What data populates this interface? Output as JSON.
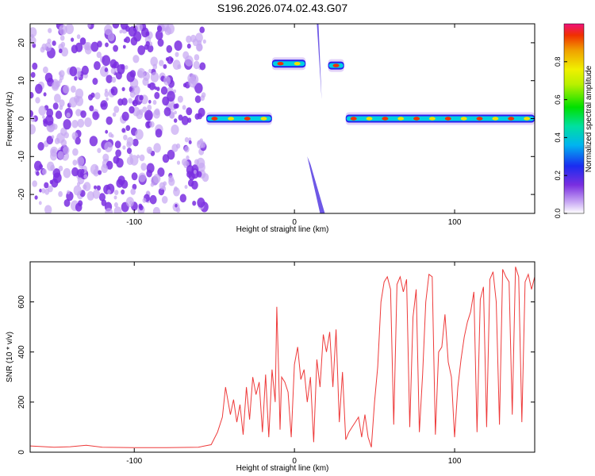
{
  "title": "S196.2026.074.02.43.G07",
  "colors": {
    "snr_line": "#ee3a3a",
    "blob": "#7a2ee0",
    "blob_light": "#c6a6f2"
  },
  "chart_data": [
    {
      "type": "heatmap",
      "title": "S196.2026.074.02.43.G07",
      "xlabel": "Height of straight line (km)",
      "ylabel": "Frequency (Hz)",
      "xlim": [
        -165,
        150
      ],
      "ylim": [
        -25,
        25
      ],
      "xticks": [
        -100,
        0,
        100
      ],
      "yticks": [
        -20,
        -10,
        0,
        10,
        20
      ],
      "xtick_labels": [
        "-100",
        "0",
        "100"
      ],
      "ytick_labels": [
        "-20",
        "-10",
        "0",
        "10",
        "20"
      ],
      "colorbar": {
        "label": "Normalized spectral amplitude",
        "range": [
          0,
          1
        ],
        "ticks": [
          0,
          0.2,
          0.4,
          0.6,
          0.8
        ],
        "tick_labels": [
          "0.0",
          "0.2",
          "0.4",
          "0.6",
          "0.8"
        ]
      },
      "segments": [
        {
          "x0": -165,
          "x1": -55,
          "freq": null,
          "kind": "noise"
        },
        {
          "x0": -55,
          "x1": -14,
          "freq": 0,
          "kind": "line"
        },
        {
          "x0": -14,
          "x1": 7,
          "freq": 14.5,
          "kind": "line"
        },
        {
          "x0": 21,
          "x1": 31,
          "freq": 14,
          "kind": "line"
        },
        {
          "x0": 32,
          "x1": 150,
          "freq": 0,
          "kind": "line"
        }
      ]
    },
    {
      "type": "line",
      "xlabel": "Height of straight line (km)",
      "ylabel": "SNR (10 * v/v)",
      "xlim": [
        -165,
        150
      ],
      "ylim": [
        0,
        760
      ],
      "xticks": [
        -100,
        0,
        100
      ],
      "yticks": [
        0,
        200,
        400,
        600
      ],
      "xtick_labels": [
        "-100",
        "0",
        "100"
      ],
      "ytick_labels": [
        "0",
        "200",
        "400",
        "600"
      ],
      "series": [
        {
          "name": "SNR",
          "x": [
            -165,
            -150,
            -140,
            -130,
            -120,
            -100,
            -80,
            -60,
            -52,
            -48,
            -45,
            -43,
            -40,
            -38,
            -36,
            -34,
            -32,
            -30,
            -28,
            -26,
            -24,
            -22,
            -20,
            -18,
            -16,
            -14,
            -12,
            -11,
            -10,
            -9,
            -8,
            -6,
            -4,
            -2,
            0,
            2,
            4,
            6,
            8,
            10,
            12,
            14,
            16,
            18,
            20,
            22,
            24,
            26,
            28,
            30,
            32,
            34,
            36,
            38,
            40,
            42,
            44,
            46,
            48,
            50,
            52,
            54,
            56,
            58,
            60,
            62,
            64,
            66,
            68,
            70,
            72,
            74,
            76,
            78,
            80,
            82,
            84,
            86,
            88,
            90,
            92,
            94,
            96,
            98,
            100,
            102,
            104,
            106,
            108,
            110,
            112,
            114,
            116,
            118,
            120,
            122,
            124,
            126,
            128,
            130,
            132,
            134,
            136,
            138,
            140,
            142,
            144,
            146,
            148,
            150
          ],
          "values": [
            25,
            20,
            22,
            28,
            20,
            18,
            18,
            20,
            30,
            80,
            140,
            260,
            150,
            210,
            120,
            190,
            70,
            260,
            130,
            300,
            230,
            280,
            80,
            310,
            60,
            330,
            200,
            580,
            350,
            90,
            300,
            280,
            240,
            60,
            350,
            420,
            290,
            330,
            200,
            300,
            40,
            370,
            260,
            470,
            400,
            480,
            260,
            490,
            120,
            320,
            50,
            80,
            100,
            120,
            140,
            60,
            150,
            60,
            20,
            200,
            340,
            600,
            680,
            700,
            650,
            110,
            670,
            700,
            640,
            690,
            100,
            540,
            650,
            80,
            310,
            600,
            710,
            700,
            70,
            400,
            420,
            550,
            360,
            300,
            60,
            260,
            370,
            460,
            520,
            560,
            640,
            80,
            610,
            660,
            100,
            690,
            720,
            600,
            110,
            730,
            700,
            680,
            150,
            740,
            700,
            120,
            680,
            710,
            650,
            700
          ]
        }
      ]
    }
  ]
}
